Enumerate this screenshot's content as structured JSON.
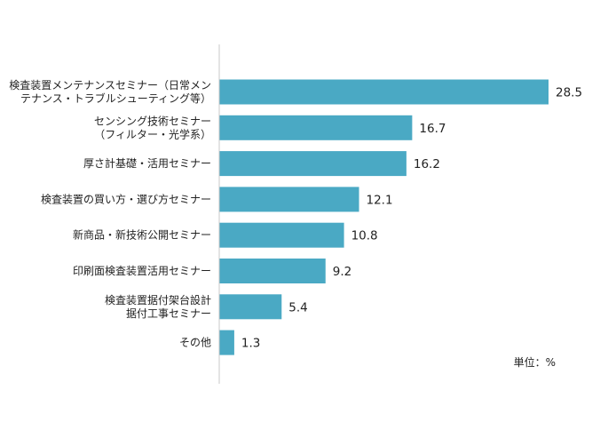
{
  "chart_data": {
    "type": "bar",
    "orientation": "horizontal",
    "categories": [
      [
        "検査装置メンテナンスセミナー（日常メン",
        "テナンス・トラブルシューティング等）"
      ],
      [
        "センシング技術セミナー",
        "（フィルター・光学系）"
      ],
      [
        "厚さ計基礎・活用セミナー"
      ],
      [
        "検査装置の買い方・選び方セミナー"
      ],
      [
        "新商品・新技術公開セミナー"
      ],
      [
        "印刷面検査装置活用セミナー"
      ],
      [
        "検査装置据付架台設計",
        "据付工事セミナー"
      ],
      [
        "その他"
      ]
    ],
    "values": [
      28.5,
      16.7,
      16.2,
      12.1,
      10.8,
      9.2,
      5.4,
      1.3
    ],
    "value_labels": [
      "28.5",
      "16.7",
      "16.2",
      "12.1",
      "10.8",
      "9.2",
      "5.4",
      "1.3"
    ],
    "xlim": [
      0,
      28.5
    ],
    "unit_label": "単位：%",
    "bar_color": "#4aa9c4",
    "axis_color": "#c8c8c8",
    "grid": false,
    "legend": "none"
  }
}
